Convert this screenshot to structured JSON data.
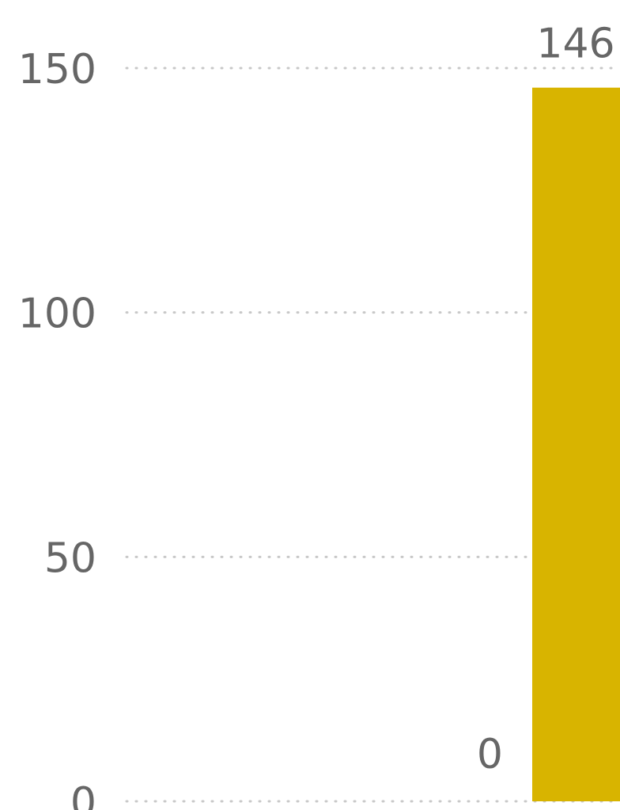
{
  "chart_data": {
    "type": "bar",
    "categories": [
      "",
      ""
    ],
    "values": [
      0,
      146
    ],
    "data_labels": [
      "0",
      "146"
    ],
    "y_ticks": [
      0,
      50,
      100,
      150
    ],
    "y_tick_labels": [
      "0",
      "50",
      "100",
      "150"
    ],
    "ylim": [
      0,
      150
    ],
    "grid": true,
    "grid_style": "dotted",
    "legend": "none",
    "colors": {
      "bar": "#d8b400",
      "text": "#666666",
      "grid": "#c8c8c8",
      "background": "#ffffff"
    }
  }
}
